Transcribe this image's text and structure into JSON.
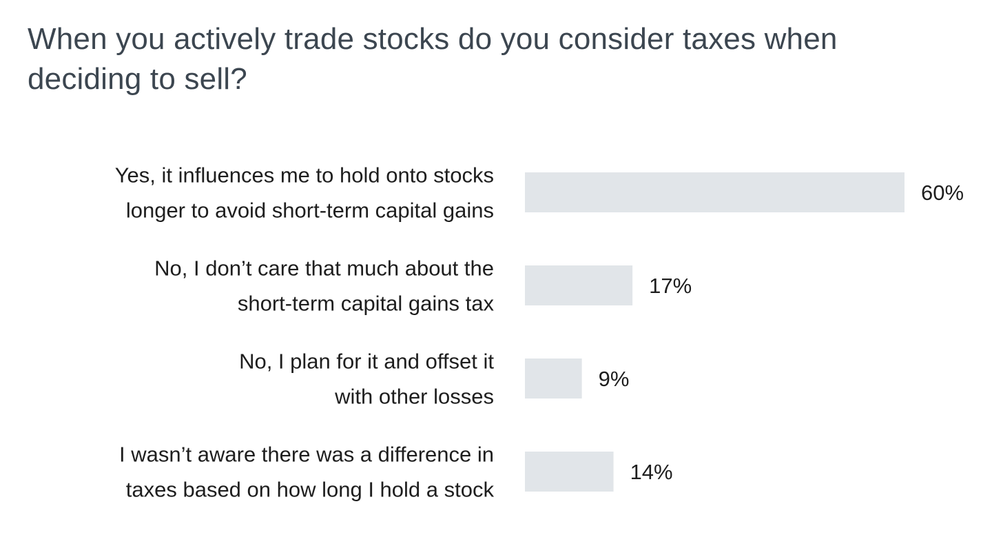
{
  "chart_data": {
    "type": "bar",
    "orientation": "horizontal",
    "title": "When you actively trade stocks do you consider taxes when deciding to sell?",
    "categories": [
      [
        "Yes, it influences me to hold onto stocks",
        "longer to avoid short-term capital gains"
      ],
      [
        "No, I don’t care that much about the",
        "short-term capital gains tax"
      ],
      [
        "No, I plan for it and offset it",
        "with other losses"
      ],
      [
        "I wasn’t aware there was a difference in",
        "taxes based on how long I hold a stock"
      ]
    ],
    "values": [
      60,
      17,
      9,
      14
    ],
    "value_labels": [
      "60%",
      "17%",
      "9%",
      "14%"
    ],
    "unit": "%",
    "xlim": [
      0,
      60
    ],
    "grid": false,
    "legend": "none",
    "bar_color": "#e1e5e9",
    "text_color": "#1e1e1e",
    "title_color": "#3c4650"
  }
}
